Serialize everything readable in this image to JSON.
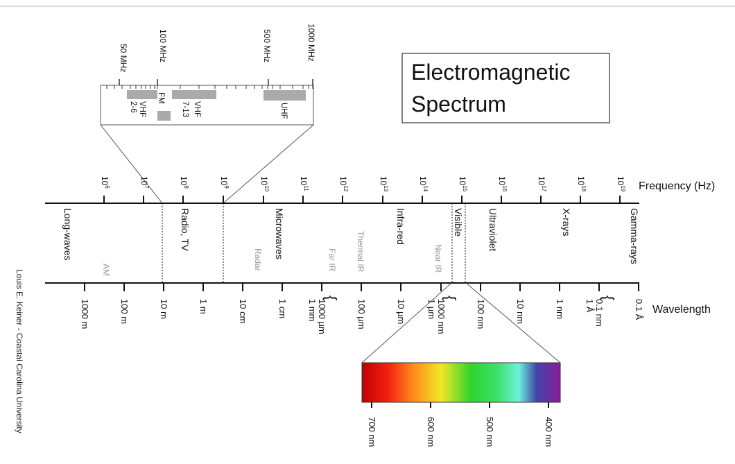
{
  "title": {
    "line1": "Electromagnetic",
    "line2": "Spectrum"
  },
  "credit": "Louis E. Keiner - Coastal Carolina University",
  "frequency_axis": {
    "label": "Frequency (Hz)",
    "ticks": [
      {
        "base": "10",
        "exp": "6"
      },
      {
        "base": "10",
        "exp": "7"
      },
      {
        "base": "10",
        "exp": "8"
      },
      {
        "base": "10",
        "exp": "9"
      },
      {
        "base": "10",
        "exp": "10"
      },
      {
        "base": "10",
        "exp": "11"
      },
      {
        "base": "10",
        "exp": "12"
      },
      {
        "base": "10",
        "exp": "13"
      },
      {
        "base": "10",
        "exp": "14"
      },
      {
        "base": "10",
        "exp": "15"
      },
      {
        "base": "10",
        "exp": "16"
      },
      {
        "base": "10",
        "exp": "17"
      },
      {
        "base": "10",
        "exp": "18"
      },
      {
        "base": "10",
        "exp": "19"
      }
    ]
  },
  "wavelength_axis": {
    "label": "Wavelength",
    "ticks": [
      "1000 m",
      "100 m",
      "10 m",
      "1 m",
      "10 cm",
      "1 cm",
      "1000 µm",
      "100 µm",
      "10 µm",
      "1000 nm",
      "100 nm",
      "10 nm",
      "1 nm",
      "0.1 nm",
      "0.1 Å"
    ],
    "brace_labels": [
      "1 mm",
      "1 µm",
      "1 Å"
    ]
  },
  "regions": [
    "Long-waves",
    "Radio, TV",
    "Microwaves",
    "Infra-red",
    "Visible",
    "Ultraviolet",
    "X-rays",
    "Gamma-rays"
  ],
  "subregions": [
    "AM",
    "Radar",
    "Far IR",
    "Thermal IR",
    "Near IR"
  ],
  "inset": {
    "scale_labels": [
      "50 MHz",
      "100 MHz",
      "500 MHz",
      "1000 MHz"
    ],
    "bands": [
      {
        "label": "VHF",
        "sub": "2-6"
      },
      {
        "label": "FM",
        "sub": ""
      },
      {
        "label": "VHF",
        "sub": "7-13"
      },
      {
        "label": "UHF",
        "sub": ""
      }
    ]
  },
  "visible_spectrum": {
    "ticks": [
      "700 nm",
      "600 nm",
      "500 nm",
      "400 nm"
    ]
  }
}
